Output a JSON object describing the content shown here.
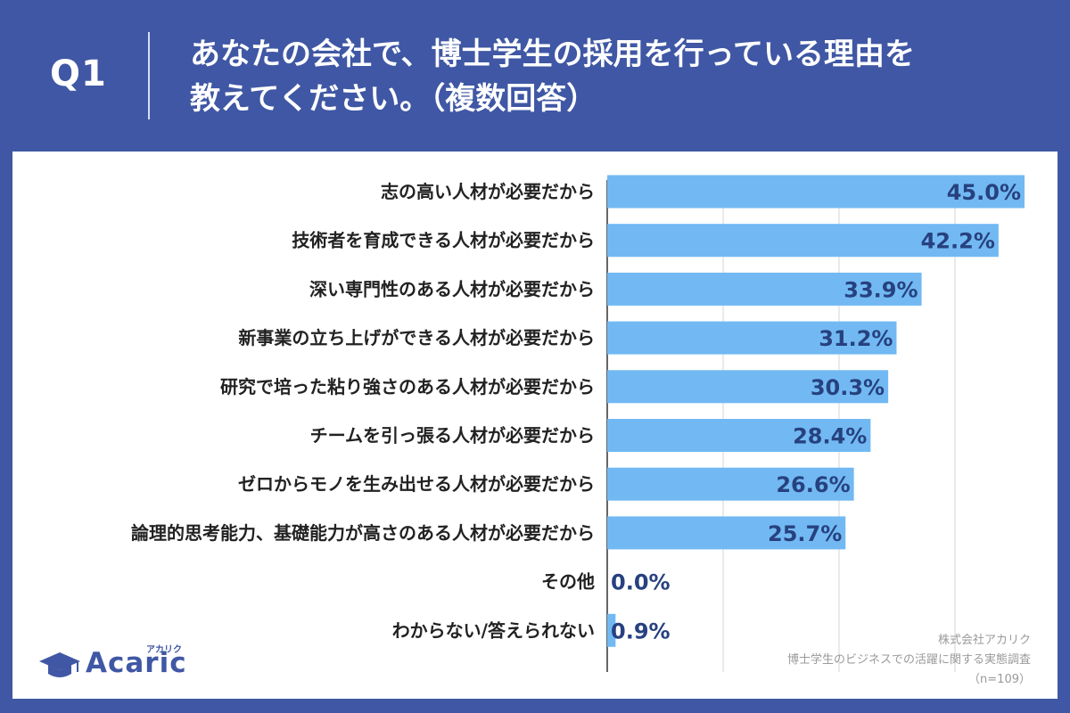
{
  "header": {
    "q_label": "Q1",
    "question_line1": "あなたの会社で、博士学生の採用を行っている理由を",
    "question_line2": "教えてください。（複数回答）"
  },
  "chart_data": {
    "type": "bar",
    "orientation": "horizontal",
    "categories": [
      "志の高い人材が必要だから",
      "技術者を育成できる人材が必要だから",
      "深い専門性のある人材が必要だから",
      "新事業の立ち上げができる人材が必要だから",
      "研究で培った粘り強さのある人材が必要だから",
      "チームを引っ張る人材が必要だから",
      "ゼロからモノを生み出せる人材が必要だから",
      "論理的思考能力、基礎能力が高さのある人材が必要だから",
      "その他",
      "わからない/答えられない"
    ],
    "values": [
      45.0,
      42.2,
      33.9,
      31.2,
      30.3,
      28.4,
      26.6,
      25.7,
      0.0,
      0.9
    ],
    "value_labels": [
      "45.0%",
      "42.2%",
      "33.9%",
      "31.2%",
      "30.3%",
      "28.4%",
      "26.6%",
      "25.7%",
      "0.0%",
      "0.9%"
    ],
    "xlim": [
      0,
      50
    ],
    "grid": true,
    "bar_color": "#72b9f3"
  },
  "source": {
    "company": "株式会社アカリク",
    "survey": "博士学生のビジネスでの活躍に関する実態調査",
    "sample": "（n=109）"
  },
  "logo": {
    "text": "Acaric",
    "kana": "アカリク"
  },
  "colors": {
    "background": "#3f57a4",
    "panel": "#ffffff",
    "bar": "#72b9f3",
    "value_text": "#27417f"
  }
}
